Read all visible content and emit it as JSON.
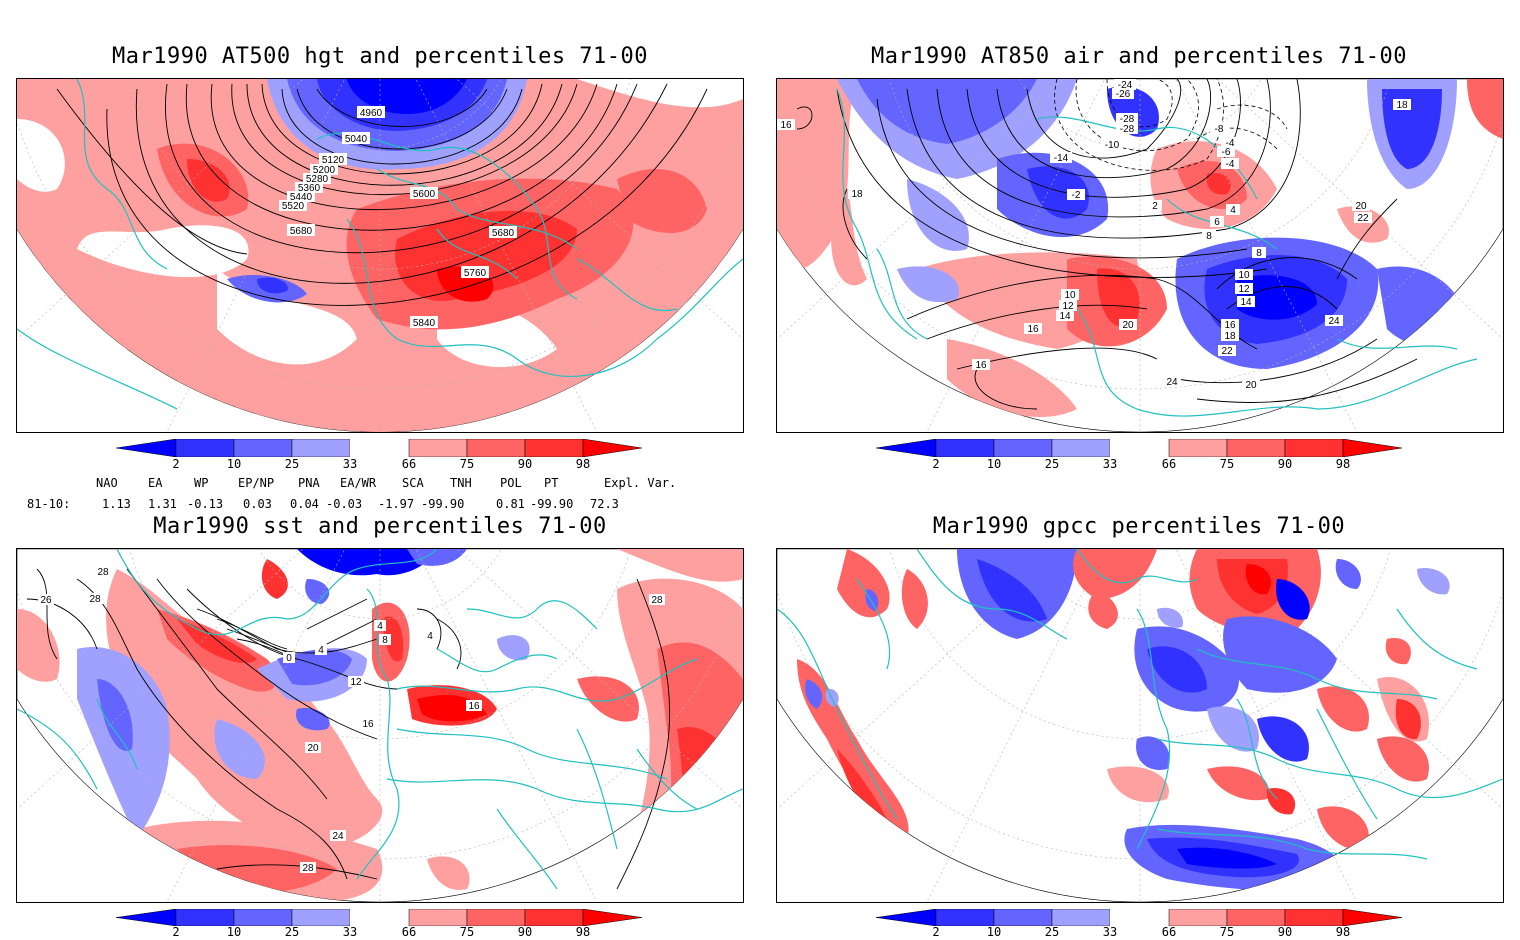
{
  "panels": [
    {
      "id": "hgt",
      "title": "Mar1990 AT500 hgt and percentiles 71-00",
      "contour_labels": [
        "4960",
        "5040",
        "5120",
        "5200",
        "5280",
        "5360",
        "5440",
        "5520",
        "5600",
        "5680",
        "5680",
        "5760",
        "5840"
      ]
    },
    {
      "id": "air",
      "title": "Mar1990 AT850 air and percentiles 71-00",
      "contour_labels": [
        "-24",
        "-26",
        "-28",
        "-28",
        "-14",
        "-10",
        "-6",
        "-4",
        "-2",
        "2",
        "4",
        "6",
        "8",
        "10",
        "12",
        "14",
        "16",
        "16",
        "18",
        "18",
        "20",
        "20",
        "20",
        "22",
        "22",
        "24",
        "24",
        "16",
        "18",
        "10",
        "12",
        "14",
        "16",
        "8",
        "-8",
        "-4"
      ]
    },
    {
      "id": "sst",
      "title": "Mar1990 sst and percentiles 71-00",
      "contour_labels": [
        "28",
        "26",
        "28",
        "0",
        "4",
        "8",
        "12",
        "16",
        "20",
        "24",
        "28",
        "4",
        "4",
        "16",
        "28"
      ]
    },
    {
      "id": "gpcc",
      "title": "Mar1990 gpcc percentiles 71-00",
      "contour_labels": []
    }
  ],
  "colorbar": {
    "labels": [
      "2",
      "10",
      "25",
      "33",
      "66",
      "75",
      "90",
      "98"
    ],
    "colors": [
      "#0000ff",
      "#3232ff",
      "#6464ff",
      "#a0a0ff",
      "#ffffff",
      "#ffa0a0",
      "#ff6464",
      "#ff3232",
      "#ff0000"
    ]
  },
  "indices": {
    "header": [
      "NAO",
      "EA",
      "WP",
      "EP/NP",
      "PNA",
      "EA/WR",
      "SCA",
      "TNH",
      "POL",
      "PT",
      "Expl. Var."
    ],
    "row_label": "81-10:",
    "values": [
      "1.13",
      "1.31",
      "-0.13",
      "0.03",
      "0.04",
      "-0.03",
      "-1.97",
      "-99.90",
      "0.81",
      "-99.90",
      "72.3"
    ]
  },
  "colors": {
    "coast": "#20c0c0",
    "contour": "#000000",
    "grid": "#b4b4b4"
  }
}
